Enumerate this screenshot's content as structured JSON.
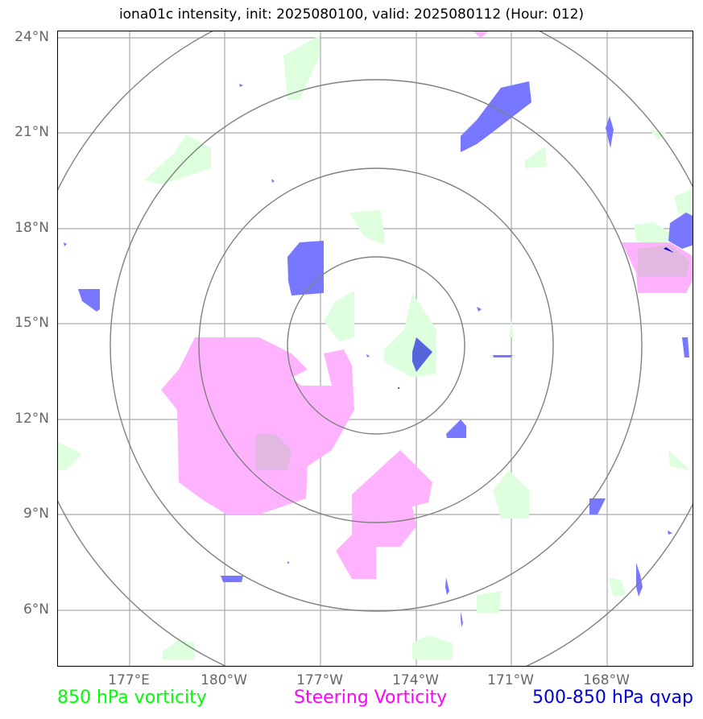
{
  "title": "iona01c intensity, init: 2025080100, valid: 2025080112 (Hour: 012)",
  "lat_ticks": [
    "24°N",
    "21°N",
    "18°N",
    "15°N",
    "12°N",
    "9°N",
    "6°N"
  ],
  "lon_ticks": [
    "177°E",
    "180°W",
    "177°W",
    "174°W",
    "171°W",
    "168°W"
  ],
  "legend": {
    "vort850": {
      "label": "850 hPa vorticity",
      "color": "#00ff00"
    },
    "steering": {
      "label": "Steering Vorticity",
      "color": "#ff00ff"
    },
    "qvap": {
      "label": "500-850 hPa qvap",
      "color": "#0000dd"
    }
  },
  "colors": {
    "green_fill": "#ddffdd",
    "pink_fill": "#ffb3ff",
    "blue_fill": "#7777ff",
    "grid": "#999999",
    "rings": "#808080"
  }
}
